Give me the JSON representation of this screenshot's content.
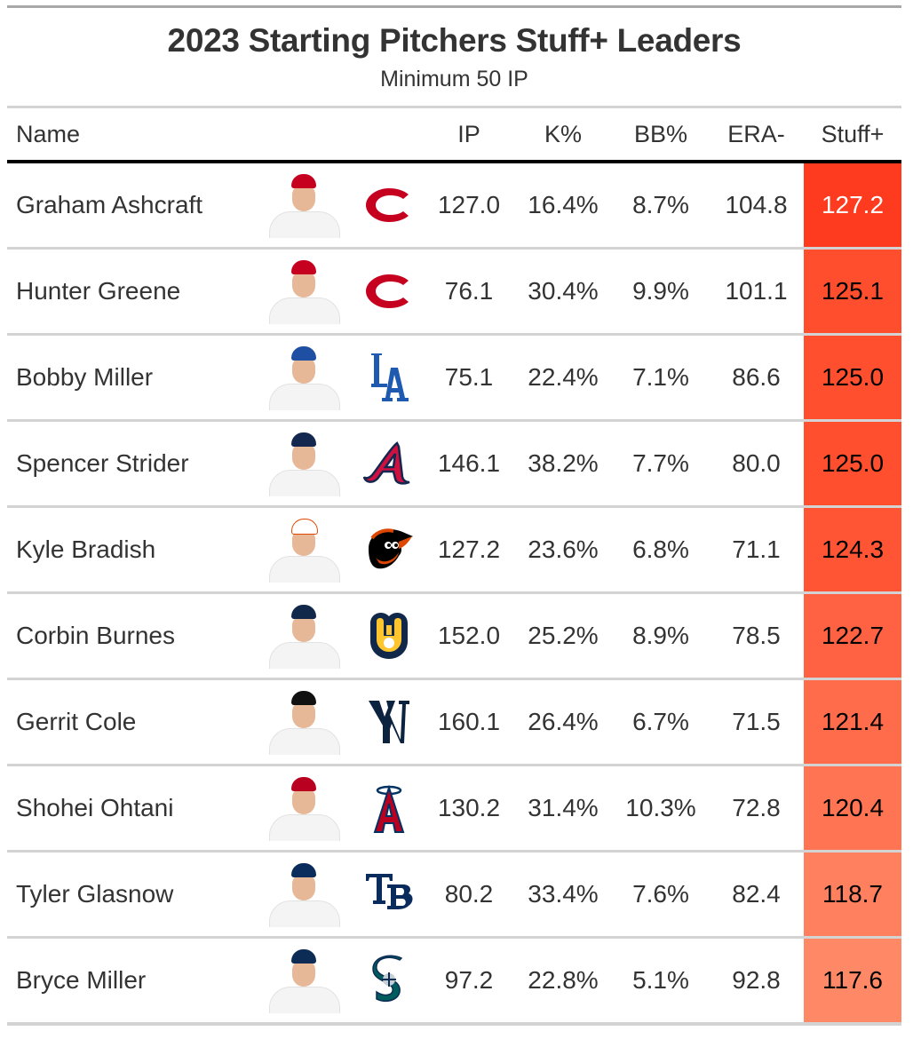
{
  "header": {
    "title": "2023 Starting Pitchers Stuff+ Leaders",
    "subtitle": "Minimum 50 IP"
  },
  "columns": {
    "name": "Name",
    "headshot": "",
    "logo": "",
    "ip": "IP",
    "k_pct": "K%",
    "bb_pct": "BB%",
    "era_minus": "ERA-",
    "stuff_plus": "Stuff+"
  },
  "colors": {
    "stuff_scale_high": "#ff3d1f",
    "stuff_scale_low": "#ff8a66",
    "rule_gray": "#d3d3d3",
    "header_rule": "#000000"
  },
  "rows": [
    {
      "name": "Graham Ashcraft",
      "team": "CIN",
      "logo_icon": "reds-c-logo-icon",
      "cap_color": "#c6011f",
      "ip": "127.0",
      "k_pct": "16.4%",
      "bb_pct": "8.7%",
      "era_minus": "104.8",
      "stuff_plus": "127.2",
      "stuff_bg": "#ff3b1f"
    },
    {
      "name": "Hunter Greene",
      "team": "CIN",
      "logo_icon": "reds-c-logo-icon",
      "cap_color": "#c6011f",
      "ip": "76.1",
      "k_pct": "30.4%",
      "bb_pct": "9.9%",
      "era_minus": "101.1",
      "stuff_plus": "125.1",
      "stuff_bg": "#ff4e2d"
    },
    {
      "name": "Bobby Miller",
      "team": "LAD",
      "logo_icon": "dodgers-la-logo-icon",
      "cap_color": "#1e4fa3",
      "ip": "75.1",
      "k_pct": "22.4%",
      "bb_pct": "7.1%",
      "era_minus": "86.6",
      "stuff_plus": "125.0",
      "stuff_bg": "#ff4f2e"
    },
    {
      "name": "Spencer Strider",
      "team": "ATL",
      "logo_icon": "braves-a-logo-icon",
      "cap_color": "#13274f",
      "ip": "146.1",
      "k_pct": "38.2%",
      "bb_pct": "7.7%",
      "era_minus": "80.0",
      "stuff_plus": "125.0",
      "stuff_bg": "#ff4f2e"
    },
    {
      "name": "Kyle Bradish",
      "team": "BAL",
      "logo_icon": "orioles-bird-logo-icon",
      "cap_color": "#ffffff",
      "ip": "127.2",
      "k_pct": "23.6%",
      "bb_pct": "6.8%",
      "era_minus": "71.1",
      "stuff_plus": "124.3",
      "stuff_bg": "#ff5534"
    },
    {
      "name": "Corbin Burnes",
      "team": "MIL",
      "logo_icon": "brewers-glove-logo-icon",
      "cap_color": "#12284b",
      "ip": "152.0",
      "k_pct": "25.2%",
      "bb_pct": "8.9%",
      "era_minus": "78.5",
      "stuff_plus": "122.7",
      "stuff_bg": "#ff6242"
    },
    {
      "name": "Gerrit Cole",
      "team": "NYY",
      "logo_icon": "yankees-ny-logo-icon",
      "cap_color": "#111111",
      "ip": "160.1",
      "k_pct": "26.4%",
      "bb_pct": "6.7%",
      "era_minus": "71.5",
      "stuff_plus": "121.4",
      "stuff_bg": "#ff6c4c"
    },
    {
      "name": "Shohei Ohtani",
      "team": "LAA",
      "logo_icon": "angels-a-logo-icon",
      "cap_color": "#ba0021",
      "ip": "130.2",
      "k_pct": "31.4%",
      "bb_pct": "10.3%",
      "era_minus": "72.8",
      "stuff_plus": "120.4",
      "stuff_bg": "#ff7453"
    },
    {
      "name": "Tyler Glasnow",
      "team": "TB",
      "logo_icon": "rays-tb-logo-icon",
      "cap_color": "#092c5c",
      "ip": "80.2",
      "k_pct": "33.4%",
      "bb_pct": "7.6%",
      "era_minus": "82.4",
      "stuff_plus": "118.7",
      "stuff_bg": "#ff805f"
    },
    {
      "name": "Bryce Miller",
      "team": "SEA",
      "logo_icon": "mariners-s-logo-icon",
      "cap_color": "#0c2c56",
      "ip": "97.2",
      "k_pct": "22.8%",
      "bb_pct": "5.1%",
      "era_minus": "92.8",
      "stuff_plus": "117.6",
      "stuff_bg": "#ff8966"
    }
  ]
}
